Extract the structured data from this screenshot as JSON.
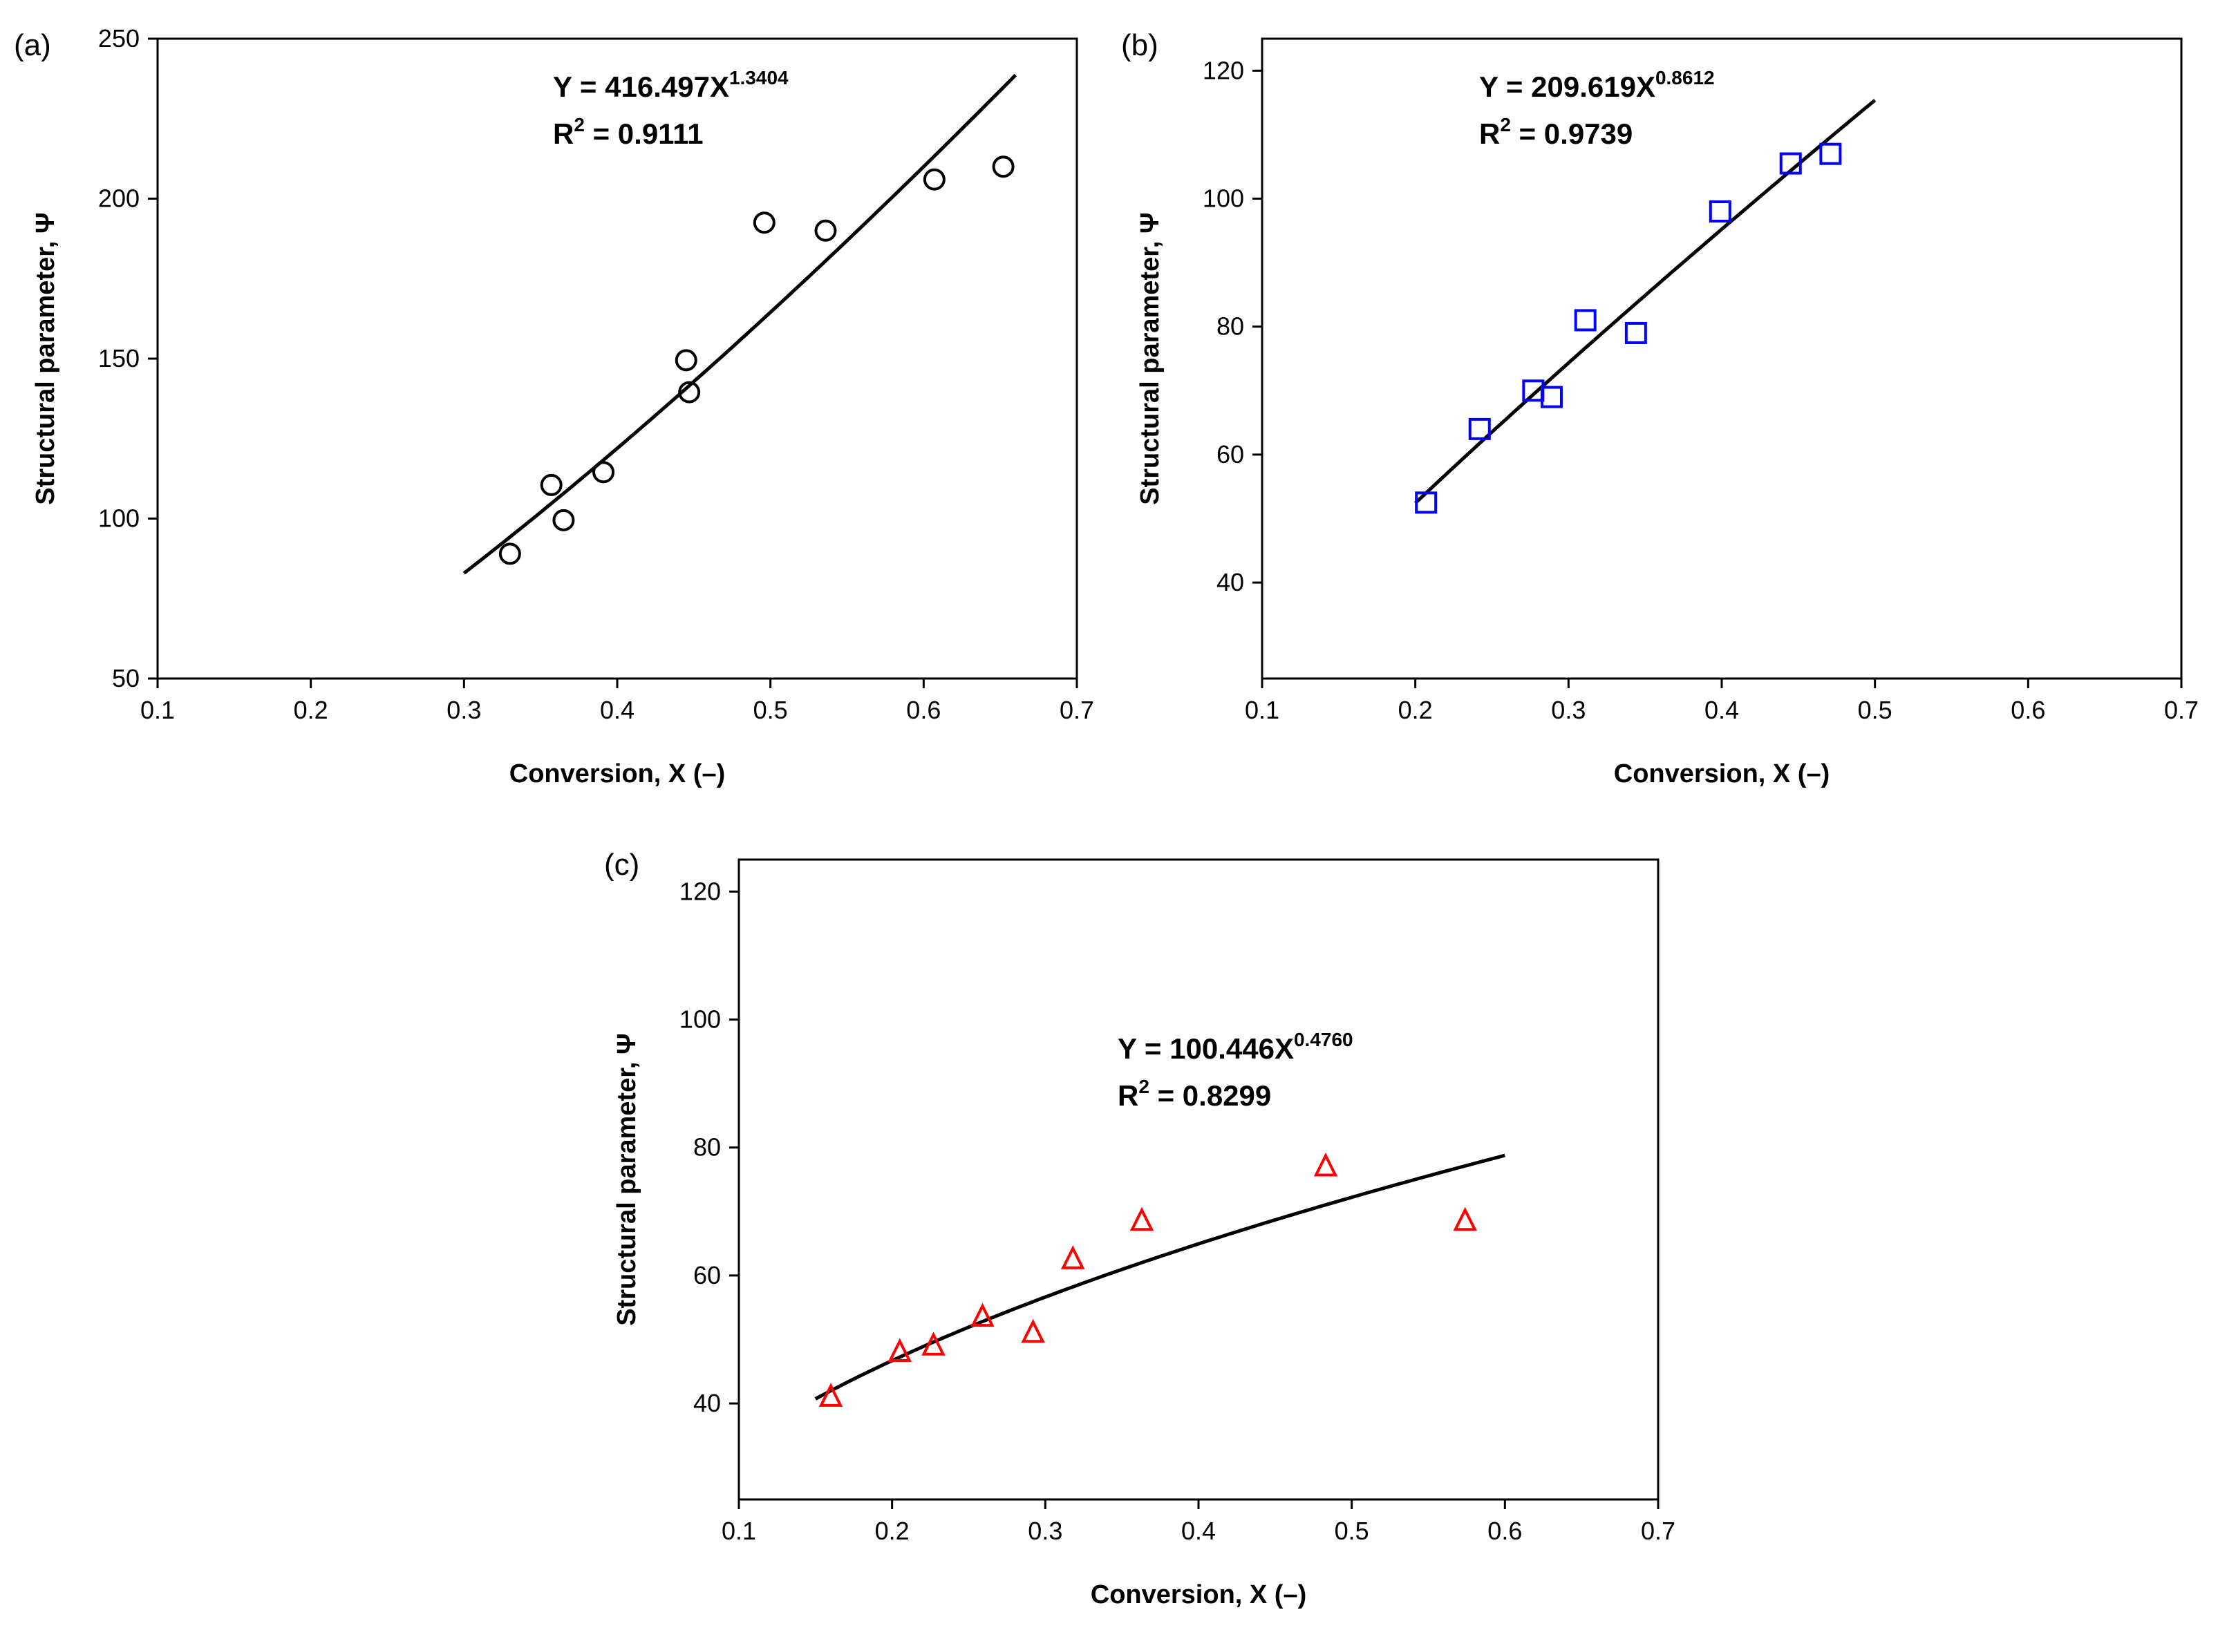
{
  "chart_data": [
    {
      "id": "a",
      "type": "scatter",
      "panel_label": "(a)",
      "xlabel": "Conversion, X (–)",
      "ylabel": "Structural parameter, Ψ",
      "xlim": [
        0.1,
        0.7
      ],
      "ylim": [
        50,
        250
      ],
      "xticks": [
        0.1,
        0.2,
        0.3,
        0.4,
        0.5,
        0.6,
        0.7
      ],
      "yticks": [
        50,
        100,
        150,
        200,
        250
      ],
      "xtick_labels": [
        "0.1",
        "0.2",
        "0.3",
        "0.4",
        "0.5",
        "0.6",
        "0.7"
      ],
      "ytick_labels": [
        "50",
        "100",
        "150",
        "200",
        "250"
      ],
      "marker": "circle",
      "marker_color": "#000000",
      "x": [
        0.33,
        0.357,
        0.365,
        0.391,
        0.445,
        0.447,
        0.496,
        0.536,
        0.607,
        0.652
      ],
      "y": [
        89,
        110.5,
        99.5,
        114.5,
        149.5,
        139.5,
        192.5,
        190,
        206,
        210
      ],
      "fit": {
        "a": 416.497,
        "b": 1.3404,
        "x_range": [
          0.3,
          0.66
        ]
      },
      "equation": {
        "prefix": "Y = 416.497X",
        "exponent": "1.3404"
      },
      "r2": {
        "prefix": "R",
        "sup": "2",
        "suffix": " = 0.9111"
      },
      "annotation_position": "top-center"
    },
    {
      "id": "b",
      "type": "scatter",
      "panel_label": "(b)",
      "xlabel": "Conversion, X (–)",
      "ylabel": "Structural parameter, Ψ",
      "xlim": [
        0.1,
        0.7
      ],
      "ylim": [
        25,
        125
      ],
      "xticks": [
        0.1,
        0.2,
        0.3,
        0.4,
        0.5,
        0.6,
        0.7
      ],
      "yticks": [
        40,
        60,
        80,
        100,
        120
      ],
      "xtick_labels": [
        "0.1",
        "0.2",
        "0.3",
        "0.4",
        "0.5",
        "0.6",
        "0.7"
      ],
      "ytick_labels": [
        "40",
        "60",
        "80",
        "100",
        "120"
      ],
      "marker": "square",
      "marker_color": "#0000ff",
      "x": [
        0.207,
        0.242,
        0.277,
        0.289,
        0.311,
        0.344,
        0.399,
        0.445,
        0.471
      ],
      "y": [
        52.5,
        64,
        70,
        69,
        81,
        79,
        98,
        105.5,
        107
      ],
      "fit": {
        "a": 209.619,
        "b": 0.8612,
        "x_range": [
          0.2,
          0.5
        ]
      },
      "equation": {
        "prefix": "Y = 209.619X",
        "exponent": "0.8612"
      },
      "r2": {
        "prefix": "R",
        "sup": "2",
        "suffix": " = 0.9739"
      },
      "annotation_position": "top-left"
    },
    {
      "id": "c",
      "type": "scatter",
      "panel_label": "(c)",
      "xlabel": "Conversion, X (–)",
      "ylabel": "Structural parameter, Ψ",
      "xlim": [
        0.1,
        0.7
      ],
      "ylim": [
        25,
        125
      ],
      "xticks": [
        0.1,
        0.2,
        0.3,
        0.4,
        0.5,
        0.6,
        0.7
      ],
      "yticks": [
        40,
        60,
        80,
        100,
        120
      ],
      "xtick_labels": [
        "0.1",
        "0.2",
        "0.3",
        "0.4",
        "0.5",
        "0.6",
        "0.7"
      ],
      "ytick_labels": [
        "40",
        "60",
        "80",
        "100",
        "120"
      ],
      "marker": "triangle",
      "marker_color": "#ff0000",
      "x": [
        0.16,
        0.205,
        0.227,
        0.259,
        0.292,
        0.318,
        0.363,
        0.483,
        0.574
      ],
      "y": [
        41,
        48,
        49,
        53.5,
        51,
        62.5,
        68.5,
        77,
        68.5
      ],
      "fit": {
        "a": 100.446,
        "b": 0.476,
        "x_range": [
          0.15,
          0.6
        ]
      },
      "equation": {
        "prefix": "Y = 100.446X",
        "exponent": "0.4760"
      },
      "r2": {
        "prefix": "R",
        "sup": "2",
        "suffix": " = 0.8299"
      },
      "annotation_position": "middle-center"
    }
  ]
}
